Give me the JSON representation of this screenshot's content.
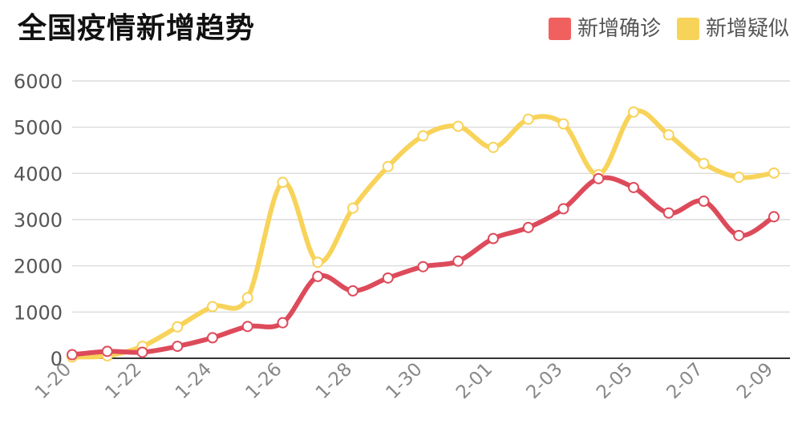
{
  "chart_data": {
    "type": "line",
    "title": "全国疫情新增趋势",
    "xlabel": "",
    "ylabel": "",
    "ylim": [
      0,
      6000
    ],
    "yticks": [
      0,
      1000,
      2000,
      3000,
      4000,
      5000,
      6000
    ],
    "grid": true,
    "legend_position": "top-right",
    "x": [
      "1-20",
      "1-21",
      "1-22",
      "1-23",
      "1-24",
      "1-25",
      "1-26",
      "1-27",
      "1-28",
      "1-29",
      "1-30",
      "1-31",
      "2-01",
      "2-02",
      "2-03",
      "2-04",
      "2-05",
      "2-06",
      "2-07",
      "2-08",
      "2-09"
    ],
    "x_tick_labels": [
      "1-20",
      "1-22",
      "1-24",
      "1-26",
      "1-28",
      "1-30",
      "2-01",
      "2-03",
      "2-05",
      "2-07",
      "2-09"
    ],
    "series": [
      {
        "name": "新增确诊",
        "color": "#dd4b5b",
        "legend_color": "#f0605e",
        "values": [
          77,
          149,
          131,
          259,
          444,
          688,
          769,
          1771,
          1459,
          1737,
          1982,
          2102,
          2590,
          2829,
          3235,
          3887,
          3694,
          3143,
          3399,
          2656,
          3062
        ]
      },
      {
        "name": "新增疑似",
        "color": "#f8d35a",
        "legend_color": "#f8d35a",
        "values": [
          27,
          53,
          257,
          680,
          1118,
          1309,
          3806,
          2077,
          3248,
          4148,
          4812,
          5019,
          4562,
          5173,
          5072,
          3971,
          5328,
          4833,
          4214,
          3916,
          4008
        ]
      }
    ]
  }
}
